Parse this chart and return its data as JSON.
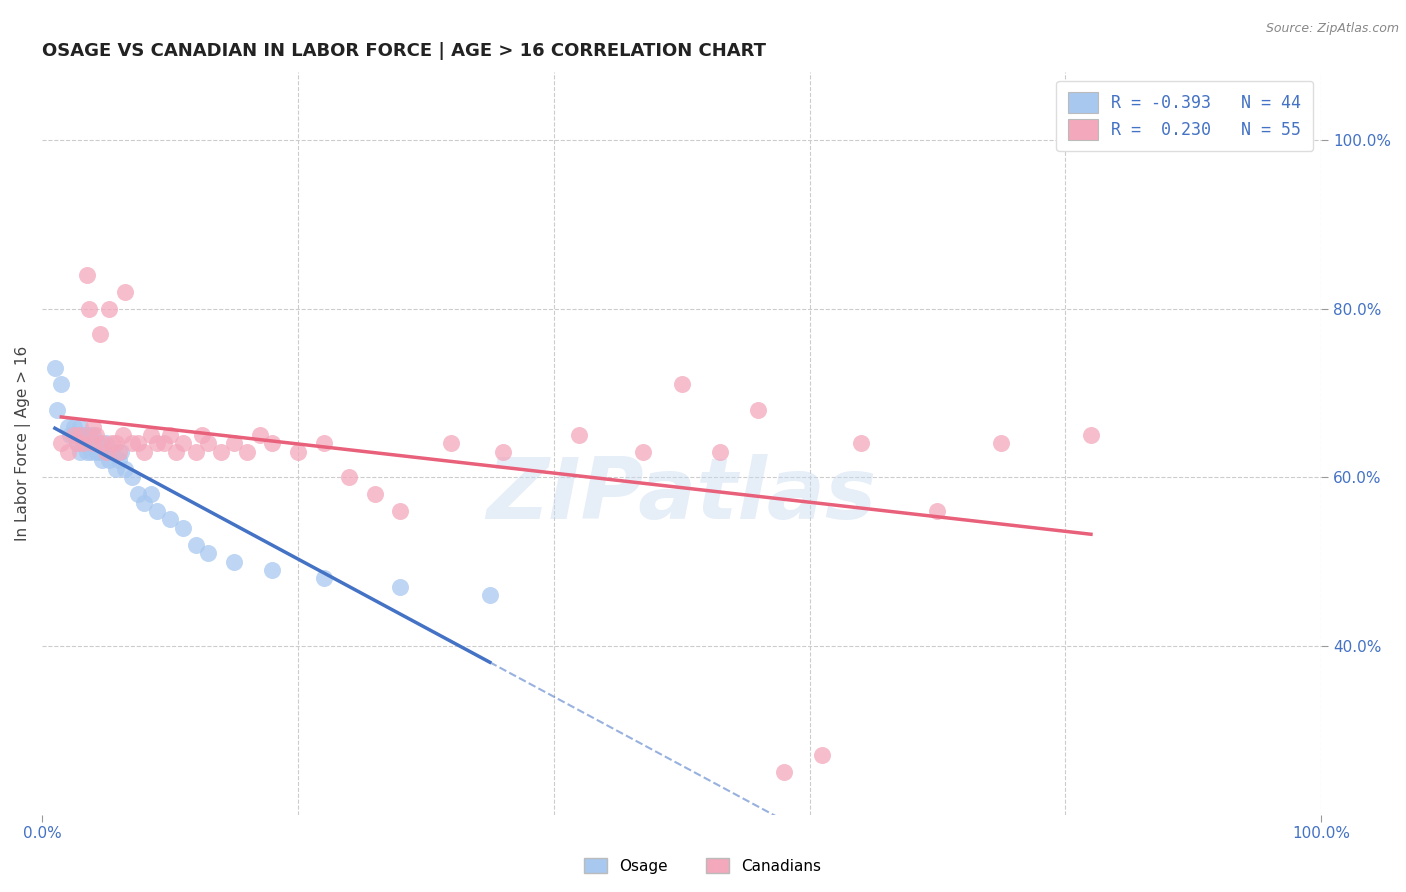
{
  "title": "OSAGE VS CANADIAN IN LABOR FORCE | AGE > 16 CORRELATION CHART",
  "source": "Source: ZipAtlas.com",
  "ylabel": "In Labor Force | Age > 16",
  "xlim": [
    0.0,
    1.0
  ],
  "ylim": [
    0.2,
    1.08
  ],
  "y_ticks_right": [
    1.0,
    0.8,
    0.6,
    0.4
  ],
  "osage_R": -0.393,
  "osage_N": 44,
  "canadian_R": 0.23,
  "canadian_N": 55,
  "osage_color": "#a8c8f0",
  "canadian_color": "#f4a8bc",
  "osage_line_color": "#4472c4",
  "canadian_line_color": "#e8607a",
  "watermark": "ZIPatlas",
  "background_color": "#ffffff",
  "grid_color": "#cccccc",
  "osage_x": [
    0.01,
    0.012,
    0.015,
    0.02,
    0.022,
    0.025,
    0.027,
    0.028,
    0.03,
    0.03,
    0.032,
    0.033,
    0.035,
    0.035,
    0.037,
    0.038,
    0.04,
    0.04,
    0.042,
    0.043,
    0.045,
    0.047,
    0.05,
    0.05,
    0.052,
    0.055,
    0.058,
    0.06,
    0.062,
    0.065,
    0.07,
    0.075,
    0.08,
    0.085,
    0.09,
    0.1,
    0.11,
    0.12,
    0.13,
    0.15,
    0.18,
    0.22,
    0.28,
    0.35
  ],
  "osage_y": [
    0.73,
    0.68,
    0.71,
    0.66,
    0.65,
    0.66,
    0.64,
    0.65,
    0.66,
    0.63,
    0.64,
    0.65,
    0.64,
    0.63,
    0.65,
    0.63,
    0.65,
    0.64,
    0.63,
    0.64,
    0.63,
    0.62,
    0.64,
    0.63,
    0.62,
    0.63,
    0.61,
    0.62,
    0.63,
    0.61,
    0.6,
    0.58,
    0.57,
    0.58,
    0.56,
    0.55,
    0.54,
    0.52,
    0.51,
    0.5,
    0.49,
    0.48,
    0.47,
    0.46
  ],
  "canadian_x": [
    0.015,
    0.02,
    0.025,
    0.027,
    0.03,
    0.032,
    0.035,
    0.037,
    0.04,
    0.04,
    0.042,
    0.045,
    0.047,
    0.05,
    0.052,
    0.055,
    0.058,
    0.06,
    0.063,
    0.065,
    0.07,
    0.075,
    0.08,
    0.085,
    0.09,
    0.095,
    0.1,
    0.105,
    0.11,
    0.12,
    0.125,
    0.13,
    0.14,
    0.15,
    0.16,
    0.17,
    0.18,
    0.2,
    0.22,
    0.24,
    0.26,
    0.28,
    0.32,
    0.36,
    0.42,
    0.47,
    0.5,
    0.53,
    0.56,
    0.58,
    0.61,
    0.64,
    0.7,
    0.75,
    0.82
  ],
  "canadian_y": [
    0.64,
    0.63,
    0.65,
    0.64,
    0.65,
    0.64,
    0.84,
    0.8,
    0.66,
    0.64,
    0.65,
    0.77,
    0.64,
    0.63,
    0.8,
    0.64,
    0.64,
    0.63,
    0.65,
    0.82,
    0.64,
    0.64,
    0.63,
    0.65,
    0.64,
    0.64,
    0.65,
    0.63,
    0.64,
    0.63,
    0.65,
    0.64,
    0.63,
    0.64,
    0.63,
    0.65,
    0.64,
    0.63,
    0.64,
    0.6,
    0.58,
    0.56,
    0.64,
    0.63,
    0.65,
    0.63,
    0.71,
    0.63,
    0.68,
    0.25,
    0.27,
    0.64,
    0.56,
    0.64,
    0.65
  ]
}
